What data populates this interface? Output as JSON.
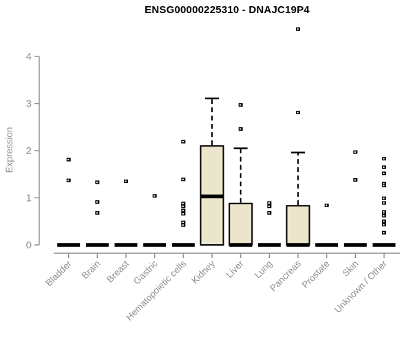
{
  "title": "ENSG00000225310 - DNAJC19P4",
  "chart_data": {
    "type": "boxplot",
    "title": "ENSG00000225310 - DNAJC19P4",
    "xlabel": "",
    "ylabel": "Expression",
    "ylim": [
      0,
      4
    ],
    "yticks": [
      0,
      1,
      2,
      3,
      4
    ],
    "grid": false,
    "legend": "none",
    "categories": [
      "Bladder",
      "Brain",
      "Breast",
      "Gastric",
      "Hematopoietic cells",
      "Kidney",
      "Liver",
      "Lung",
      "Pancreas",
      "Prostate",
      "Skin",
      "Unknown / Other"
    ],
    "series": [
      {
        "name": "Bladder",
        "low": 0,
        "q1": 0,
        "median": 0,
        "q3": 0,
        "high": 0,
        "outliers": [
          1.81,
          1.37
        ]
      },
      {
        "name": "Brain",
        "low": 0,
        "q1": 0,
        "median": 0,
        "q3": 0,
        "high": 0,
        "outliers": [
          1.33,
          0.91,
          0.68
        ]
      },
      {
        "name": "Breast",
        "low": 0,
        "q1": 0,
        "median": 0,
        "q3": 0,
        "high": 0,
        "outliers": [
          1.35
        ]
      },
      {
        "name": "Gastric",
        "low": 0,
        "q1": 0,
        "median": 0,
        "q3": 0,
        "high": 0,
        "outliers": [
          1.04
        ]
      },
      {
        "name": "Hematopoietic cells",
        "low": 0,
        "q1": 0,
        "median": 0,
        "q3": 0,
        "high": 0,
        "outliers": [
          2.19,
          1.39,
          0.88,
          0.82,
          0.73,
          0.66,
          0.48,
          0.42
        ]
      },
      {
        "name": "Kidney",
        "low": 0,
        "q1": 0,
        "median": 1.03,
        "q3": 2.1,
        "high": 3.11,
        "outliers": []
      },
      {
        "name": "Liver",
        "low": 0,
        "q1": 0,
        "median": 0,
        "q3": 0.88,
        "high": 2.05,
        "outliers": [
          2.97,
          2.46
        ]
      },
      {
        "name": "Lung",
        "low": 0,
        "q1": 0,
        "median": 0,
        "q3": 0,
        "high": 0,
        "outliers": [
          0.89,
          0.82,
          0.68
        ]
      },
      {
        "name": "Pancreas",
        "low": 0,
        "q1": 0,
        "median": 0,
        "q3": 0.83,
        "high": 1.96,
        "outliers": [
          4.58,
          2.81
        ]
      },
      {
        "name": "Prostate",
        "low": 0,
        "q1": 0,
        "median": 0,
        "q3": 0,
        "high": 0,
        "outliers": [
          0.84
        ]
      },
      {
        "name": "Skin",
        "low": 0,
        "q1": 0,
        "median": 0,
        "q3": 0,
        "high": 0,
        "outliers": [
          1.97,
          1.38
        ]
      },
      {
        "name": "Unknown / Other",
        "low": 0,
        "q1": 0,
        "median": 0,
        "q3": 0,
        "high": 0,
        "outliers": [
          1.83,
          1.65,
          1.52,
          1.3,
          1.26,
          0.99,
          0.89,
          0.7,
          0.65,
          0.62,
          0.5,
          0.45,
          0.43,
          0.26
        ]
      }
    ],
    "colors": {
      "box_fill": "#EBE5CC",
      "box_stroke": "#000000",
      "median": "#000000",
      "whisker": "#000000",
      "outlier": "#000000",
      "axis": "#909090",
      "title": "#000000",
      "background": "#ffffff"
    }
  }
}
